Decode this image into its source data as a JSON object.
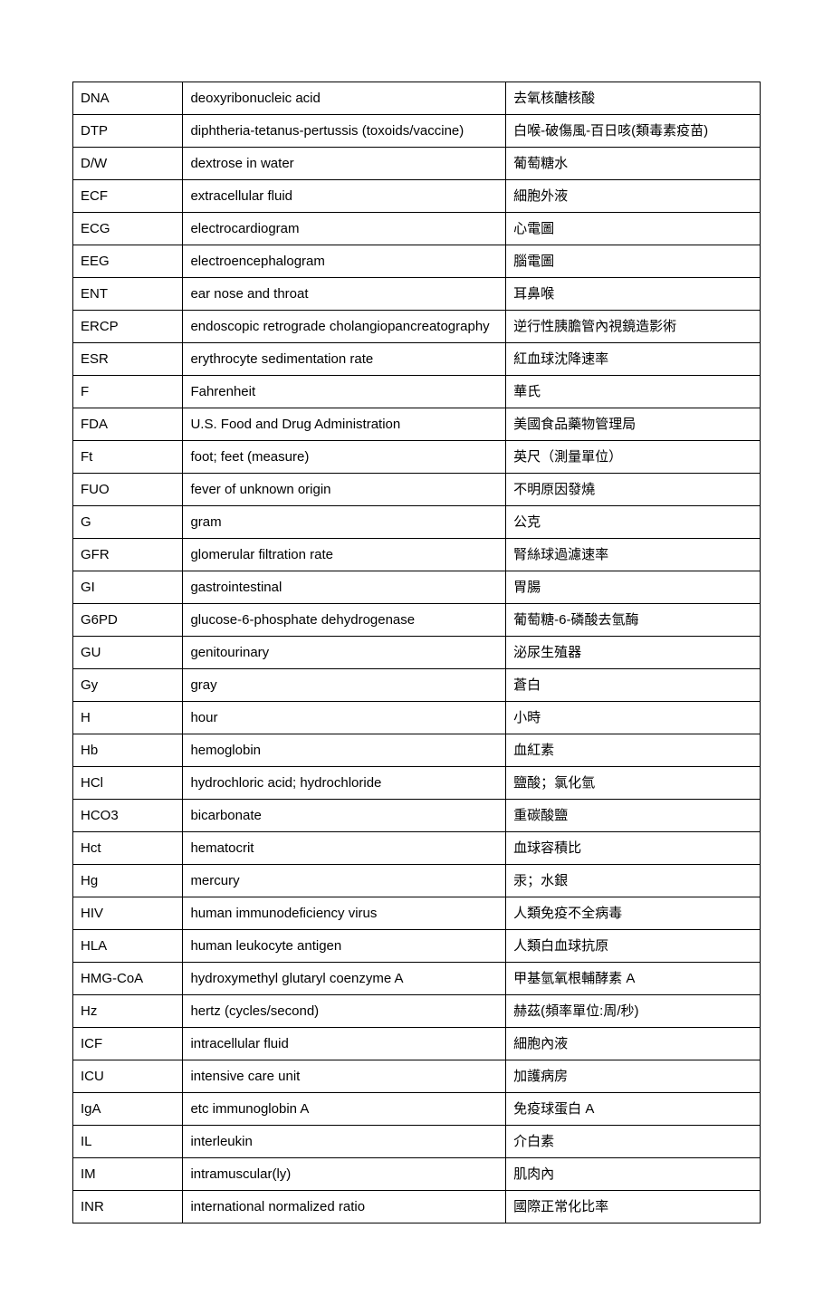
{
  "table": {
    "columns": [
      {
        "key": "abbr",
        "class": "col-abbr"
      },
      {
        "key": "eng",
        "class": "col-eng"
      },
      {
        "key": "chi",
        "class": "col-chi"
      }
    ],
    "rows": [
      {
        "abbr": "DNA",
        "eng": "deoxyribonucleic acid",
        "chi": "去氧核醣核酸"
      },
      {
        "abbr": "DTP",
        "eng": "diphtheria-tetanus-pertussis (toxoids/vaccine)",
        "chi": "白喉-破傷風-百日咳(類毒素疫苗)"
      },
      {
        "abbr": "D/W",
        "eng": "dextrose in water",
        "chi": "葡萄糖水"
      },
      {
        "abbr": "ECF",
        "eng": "extracellular fluid",
        "chi": "細胞外液"
      },
      {
        "abbr": "ECG",
        "eng": "electrocardiogram",
        "chi": "心電圖"
      },
      {
        "abbr": "EEG",
        "eng": "electroencephalogram",
        "chi": "腦電圖"
      },
      {
        "abbr": "ENT",
        "eng": "ear nose and throat",
        "chi": "耳鼻喉"
      },
      {
        "abbr": "ERCP",
        "eng": "endoscopic retrograde cholangiopancreatography",
        "chi": "逆行性胰膽管內視鏡造影術"
      },
      {
        "abbr": "ESR",
        "eng": "erythrocyte sedimentation rate",
        "chi": "紅血球沈降速率"
      },
      {
        "abbr": "F",
        "eng": "Fahrenheit",
        "chi": "華氏"
      },
      {
        "abbr": "FDA",
        "eng": "U.S. Food and Drug Administration",
        "chi": "美國食品藥物管理局"
      },
      {
        "abbr": "Ft",
        "eng": "foot; feet (measure)",
        "chi": "英尺（測量單位）"
      },
      {
        "abbr": "FUO",
        "eng": "fever of unknown origin",
        "chi": "不明原因發燒"
      },
      {
        "abbr": "G",
        "eng": "gram",
        "chi": "公克"
      },
      {
        "abbr": "GFR",
        "eng": "glomerular filtration rate",
        "chi": "腎絲球過濾速率"
      },
      {
        "abbr": "GI",
        "eng": "gastrointestinal",
        "chi": "胃腸"
      },
      {
        "abbr": "G6PD",
        "eng": "glucose-6-phosphate dehydrogenase",
        "chi": "葡萄糖-6-磷酸去氫酶"
      },
      {
        "abbr": "GU",
        "eng": "genitourinary",
        "chi": "泌尿生殖器"
      },
      {
        "abbr": "Gy",
        "eng": "gray",
        "chi": "蒼白"
      },
      {
        "abbr": "H",
        "eng": "hour",
        "chi": "小時"
      },
      {
        "abbr": "Hb",
        "eng": "hemoglobin",
        "chi": "血紅素"
      },
      {
        "abbr": "HCl",
        "eng": "hydrochloric acid; hydrochloride",
        "chi": "鹽酸；氯化氫"
      },
      {
        "abbr": "HCO3",
        "eng": "bicarbonate",
        "chi": "重碳酸鹽"
      },
      {
        "abbr": "Hct",
        "eng": "hematocrit",
        "chi": "血球容積比"
      },
      {
        "abbr": "Hg",
        "eng": "mercury",
        "chi": "汞；水銀"
      },
      {
        "abbr": "HIV",
        "eng": "human immunodeficiency virus",
        "chi": "人類免疫不全病毒"
      },
      {
        "abbr": "HLA",
        "eng": "human leukocyte antigen",
        "chi": "人類白血球抗原"
      },
      {
        "abbr": "HMG-CoA",
        "eng": "hydroxymethyl glutaryl coenzyme A",
        "chi": "甲基氫氧根輔酵素 A"
      },
      {
        "abbr": "Hz",
        "eng": "hertz (cycles/second)",
        "chi": "赫茲(頻率單位:周/秒)"
      },
      {
        "abbr": "ICF",
        "eng": "intracellular fluid",
        "chi": "細胞內液"
      },
      {
        "abbr": "ICU",
        "eng": "intensive care unit",
        "chi": "加護病房"
      },
      {
        "abbr": "IgA",
        "eng": "etc immunoglobin A",
        "chi": "免疫球蛋白 A"
      },
      {
        "abbr": "IL",
        "eng": "interleukin",
        "chi": "介白素"
      },
      {
        "abbr": "IM",
        "eng": "intramuscular(ly)",
        "chi": "肌肉內"
      },
      {
        "abbr": "INR",
        "eng": "international normalized ratio",
        "chi": "國際正常化比率"
      }
    ],
    "border_color": "#000000",
    "background_color": "#ffffff",
    "font_size": 15,
    "text_color": "#000000"
  }
}
